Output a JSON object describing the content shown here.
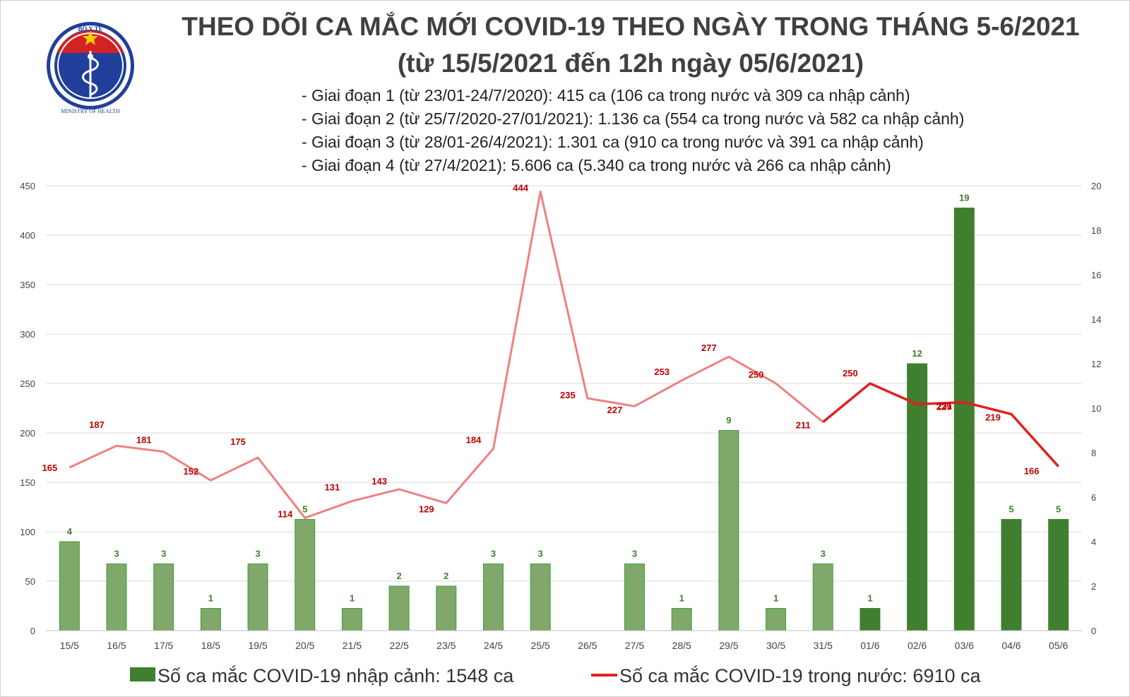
{
  "logo": {
    "top_text": "BỘ Y TẾ",
    "bottom_text": "MINISTRY OF HEALTH"
  },
  "header": {
    "title_line1": "THEO DÕI CA MẮC MỚI COVID-19 THEO NGÀY TRONG THÁNG 5-6/2021",
    "title_line2": "(từ 15/5/2021 đến 12h ngày 05/6/2021)",
    "notes": [
      "- Giai đoạn 1 (từ 23/01-24/7/2020): 415 ca (106 ca trong nước và 309 ca nhập cảnh)",
      "- Giai đoạn 2 (từ 25/7/2020-27/01/2021): 1.136 ca (554 ca trong nước và 582 ca nhập cảnh)",
      "- Giai đoạn 3 (từ 28/01-26/4/2021): 1.301 ca (910 ca trong nước và 391 ca nhập cảnh)",
      "- Giai đoạn 4 (từ 27/4/2021): 5.606 ca (5.340 ca trong nước và 266 ca nhập cảnh)"
    ]
  },
  "colors": {
    "bar_fill": "#7fa86a",
    "bar_fill_dark": "#3f7f2f",
    "bar_label": "#3f7f2f",
    "line_light": "#f08080",
    "line_dark": "#e02020",
    "line_label": "#c00000",
    "axis_text": "#444444",
    "grid": "#d9d9d9",
    "title": "#404040"
  },
  "chart_data": {
    "type": "bar+line",
    "categories": [
      "15/5",
      "16/5",
      "17/5",
      "18/5",
      "19/5",
      "20/5",
      "21/5",
      "22/5",
      "23/5",
      "24/5",
      "25/5",
      "26/5",
      "27/5",
      "28/5",
      "29/5",
      "30/5",
      "31/5",
      "01/6",
      "02/6",
      "03/6",
      "04/6",
      "05/6"
    ],
    "left_axis": {
      "ylim": [
        0,
        450
      ],
      "ticks": [
        "0",
        "50",
        "100",
        "150",
        "200",
        "250",
        "300",
        "350",
        "400",
        "450"
      ]
    },
    "right_axis": {
      "ylim": [
        0,
        20
      ],
      "ticks": [
        "0",
        "2",
        "4",
        "6",
        "8",
        "10",
        "12",
        "14",
        "16",
        "18",
        "20"
      ]
    },
    "grid": true,
    "legend_position": "bottom",
    "series": [
      {
        "name": "Số ca mắc COVID-19 nhập cảnh: 1548 ca",
        "type": "bar",
        "axis": "right",
        "values": [
          4,
          3,
          3,
          1,
          3,
          5,
          1,
          2,
          2,
          3,
          3,
          null,
          3,
          1,
          9,
          1,
          3,
          1,
          12,
          19,
          5,
          5
        ]
      },
      {
        "name": "Số ca mắc COVID-19 trong nước: 6910 ca",
        "type": "line",
        "axis": "left",
        "values": [
          165,
          187,
          181,
          152,
          175,
          114,
          131,
          143,
          129,
          184,
          444,
          235,
          227,
          253,
          277,
          250,
          211,
          250,
          229,
          231,
          219,
          166
        ]
      }
    ]
  }
}
